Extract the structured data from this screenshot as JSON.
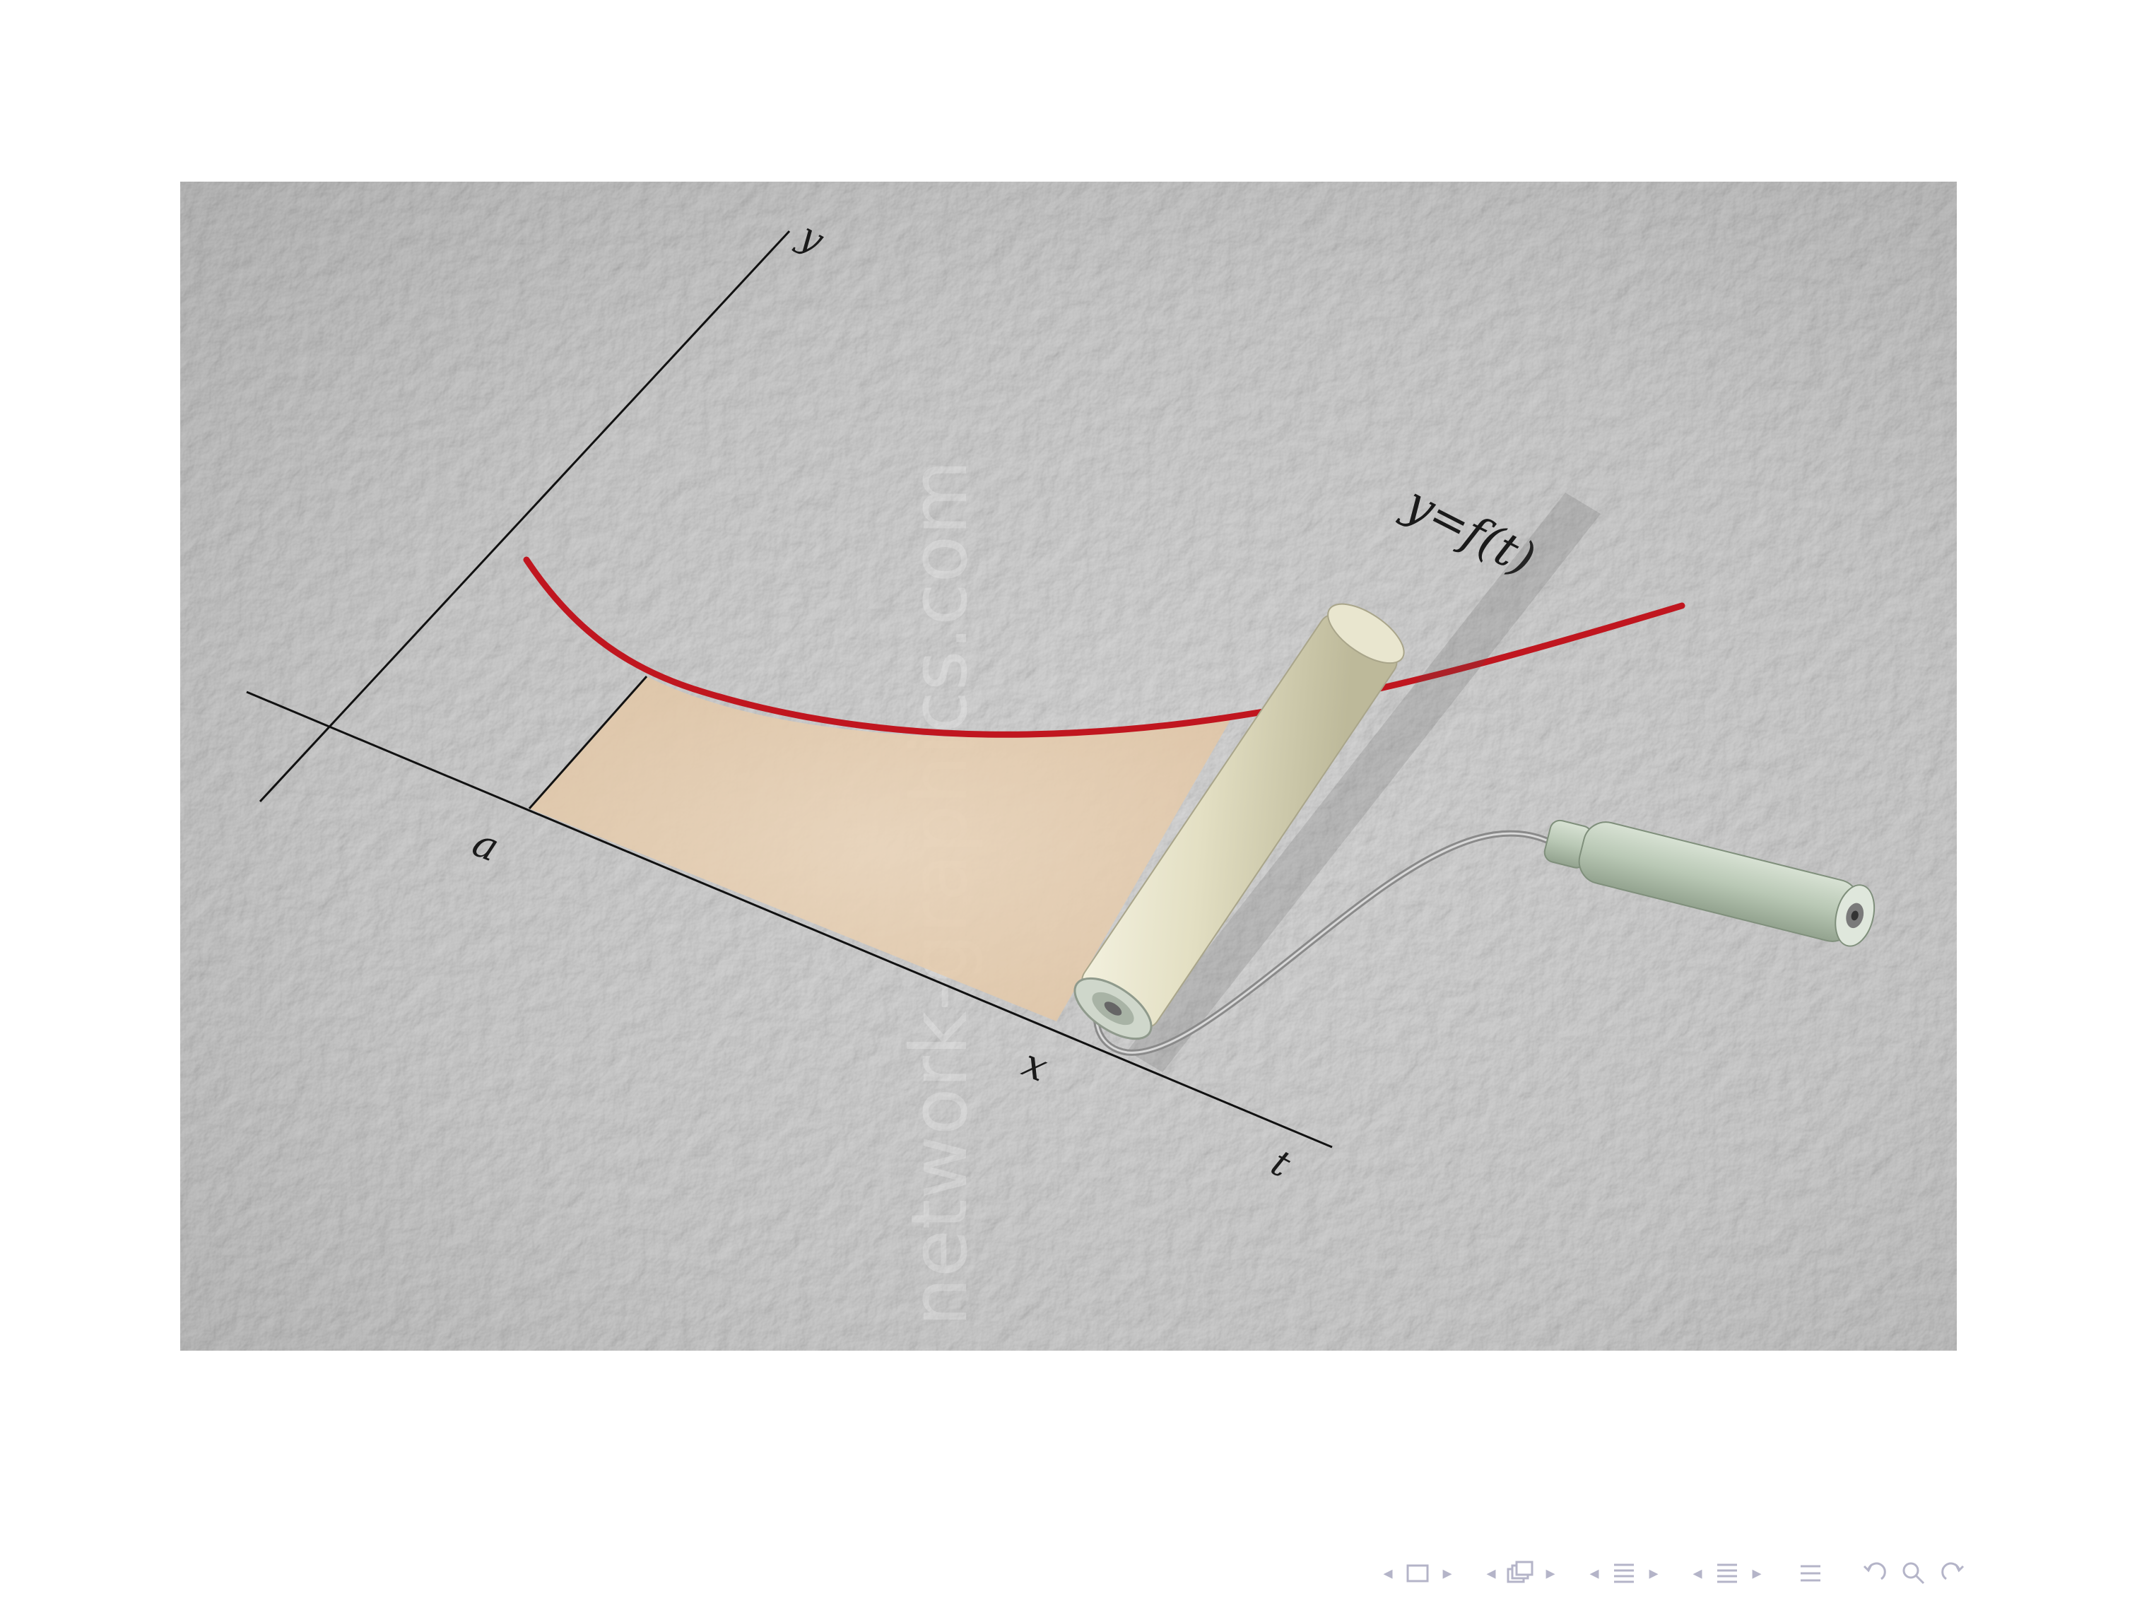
{
  "diagram": {
    "labels": {
      "y_axis": "y",
      "t_axis": "t",
      "lower_limit": "a",
      "upper_limit": "x",
      "curve": "y=f(t)"
    },
    "watermark": "network-graphics.com",
    "colors": {
      "curve": "#c0161f",
      "shaded_area": "#ead2b5",
      "background": "#c9c9c9",
      "roller_cover": "#e4e1c8",
      "handle_grip": "#b9c8b5"
    }
  },
  "navigation": {
    "items": [
      {
        "name": "slide-nav",
        "icon": "frame-icon"
      },
      {
        "name": "frame-nav",
        "icon": "stacked-frames-icon"
      },
      {
        "name": "section-nav",
        "icon": "section-list-icon"
      },
      {
        "name": "subsection-nav",
        "icon": "subsection-list-icon"
      },
      {
        "name": "appendix",
        "icon": "appendix-icon"
      },
      {
        "name": "search",
        "icon": "search-undo-redo-icon"
      }
    ],
    "accent_color": "#b4b4c8"
  }
}
